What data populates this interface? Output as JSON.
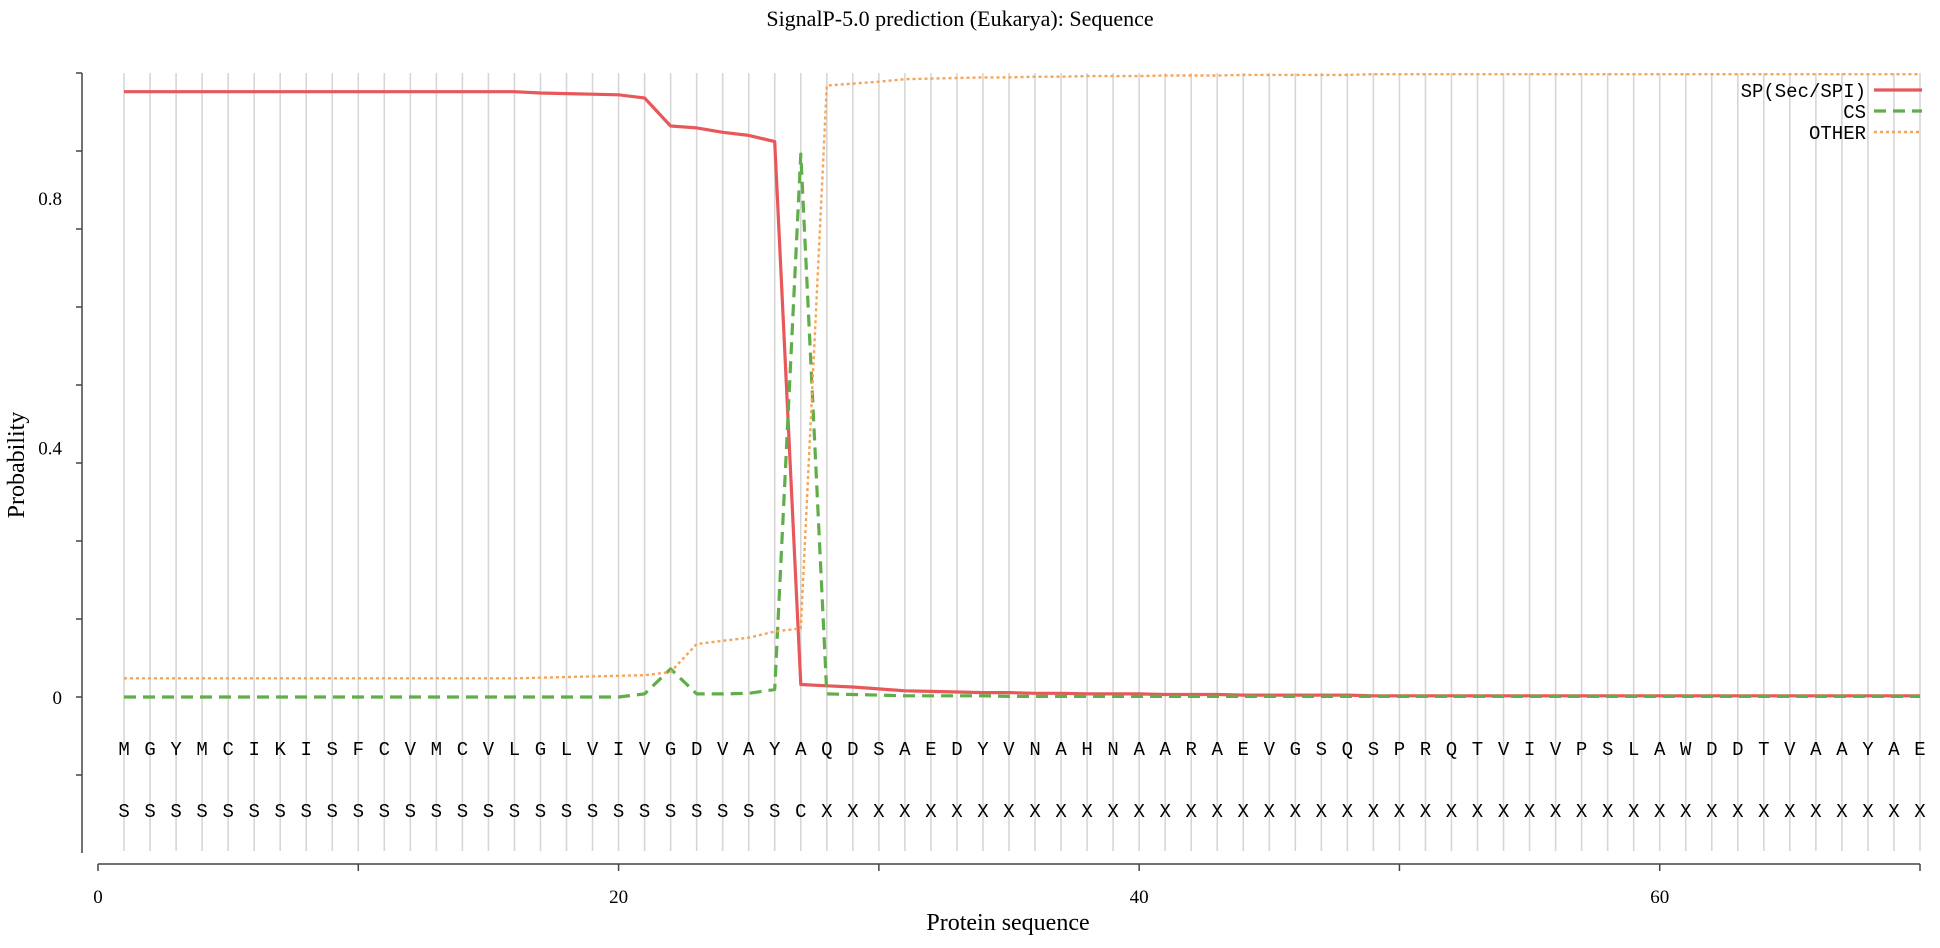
{
  "chart_data": {
    "type": "line",
    "title": "SignalP-5.0 prediction (Eukarya):  Sequence",
    "xlabel": "Protein sequence",
    "ylabel": "Probability",
    "xlim": [
      0,
      70
    ],
    "ylim": [
      -0.25,
      1.0
    ],
    "x_ticks": [
      0,
      20,
      40,
      60
    ],
    "x_tick_labels": [
      "0",
      "20",
      "40",
      "60"
    ],
    "y_ticks": [
      0,
      0.4,
      0.8
    ],
    "y_tick_labels": [
      "0",
      "0.4",
      "0.8"
    ],
    "grid": "vertical lines at each residue",
    "legend_position": "top-right",
    "sequence": [
      "M",
      "G",
      "Y",
      "M",
      "C",
      "I",
      "K",
      "I",
      "S",
      "F",
      "C",
      "V",
      "M",
      "C",
      "V",
      "L",
      "G",
      "L",
      "V",
      "I",
      "V",
      "G",
      "D",
      "V",
      "A",
      "Y",
      "A",
      "Q",
      "D",
      "S",
      "A",
      "E",
      "D",
      "Y",
      "V",
      "N",
      "A",
      "H",
      "N",
      "A",
      "A",
      "R",
      "A",
      "E",
      "V",
      "G",
      "S",
      "Q",
      "S",
      "P",
      "R",
      "Q",
      "T",
      "V",
      "I",
      "V",
      "P",
      "S",
      "L",
      "A",
      "W",
      "D",
      "D",
      "T",
      "V",
      "A",
      "A",
      "Y",
      "A",
      "E"
    ],
    "labels": [
      "S",
      "S",
      "S",
      "S",
      "S",
      "S",
      "S",
      "S",
      "S",
      "S",
      "S",
      "S",
      "S",
      "S",
      "S",
      "S",
      "S",
      "S",
      "S",
      "S",
      "S",
      "S",
      "S",
      "S",
      "S",
      "S",
      "C",
      "X",
      "X",
      "X",
      "X",
      "X",
      "X",
      "X",
      "X",
      "X",
      "X",
      "X",
      "X",
      "X",
      "X",
      "X",
      "X",
      "X",
      "X",
      "X",
      "X",
      "X",
      "X",
      "X",
      "X",
      "X",
      "X",
      "X",
      "X",
      "X",
      "X",
      "X",
      "X",
      "X",
      "X",
      "X",
      "X",
      "X",
      "X",
      "X",
      "X",
      "X",
      "X",
      "X"
    ],
    "x": [
      1,
      2,
      3,
      4,
      5,
      6,
      7,
      8,
      9,
      10,
      11,
      12,
      13,
      14,
      15,
      16,
      17,
      18,
      19,
      20,
      21,
      22,
      23,
      24,
      25,
      26,
      27,
      28,
      29,
      30,
      31,
      32,
      33,
      34,
      35,
      36,
      37,
      38,
      39,
      40,
      41,
      42,
      43,
      44,
      45,
      46,
      47,
      48,
      49,
      50,
      51,
      52,
      53,
      54,
      55,
      56,
      57,
      58,
      59,
      60,
      61,
      62,
      63,
      64,
      65,
      66,
      67,
      68,
      69,
      70
    ],
    "series": [
      {
        "name": "SP(Sec/SPI)",
        "color": "#e8585a",
        "style": "solid",
        "values": [
          0.97,
          0.97,
          0.97,
          0.97,
          0.97,
          0.97,
          0.97,
          0.97,
          0.97,
          0.97,
          0.97,
          0.97,
          0.97,
          0.97,
          0.97,
          0.97,
          0.968,
          0.967,
          0.966,
          0.965,
          0.96,
          0.915,
          0.912,
          0.905,
          0.9,
          0.89,
          0.02,
          0.018,
          0.016,
          0.013,
          0.01,
          0.009,
          0.008,
          0.007,
          0.007,
          0.006,
          0.006,
          0.005,
          0.005,
          0.005,
          0.004,
          0.004,
          0.004,
          0.003,
          0.003,
          0.003,
          0.003,
          0.003,
          0.002,
          0.002,
          0.002,
          0.002,
          0.002,
          0.002,
          0.002,
          0.002,
          0.002,
          0.002,
          0.002,
          0.002,
          0.002,
          0.002,
          0.002,
          0.002,
          0.002,
          0.002,
          0.002,
          0.002,
          0.002,
          0.002
        ]
      },
      {
        "name": "CS",
        "color": "#5fae4a",
        "style": "dashed",
        "values": [
          0.0,
          0.0,
          0.0,
          0.0,
          0.0,
          0.0,
          0.0,
          0.0,
          0.0,
          0.0,
          0.0,
          0.0,
          0.0,
          0.0,
          0.0,
          0.0,
          0.0,
          0.0,
          0.0,
          0.0,
          0.005,
          0.045,
          0.005,
          0.005,
          0.006,
          0.012,
          0.87,
          0.005,
          0.004,
          0.003,
          0.002,
          0.002,
          0.002,
          0.002,
          0.001,
          0.001,
          0.001,
          0.001,
          0.001,
          0.001,
          0.001,
          0.001,
          0.001,
          0.001,
          0.001,
          0.001,
          0.001,
          0.001,
          0.001,
          0.001,
          0.001,
          0.001,
          0.001,
          0.001,
          0.001,
          0.001,
          0.001,
          0.001,
          0.001,
          0.001,
          0.001,
          0.001,
          0.001,
          0.001,
          0.001,
          0.001,
          0.001,
          0.001,
          0.001,
          0.001
        ]
      },
      {
        "name": "OTHER",
        "color": "#f5a55a",
        "style": "dotted",
        "values": [
          0.03,
          0.03,
          0.03,
          0.03,
          0.03,
          0.03,
          0.03,
          0.03,
          0.03,
          0.03,
          0.03,
          0.03,
          0.03,
          0.03,
          0.03,
          0.03,
          0.031,
          0.032,
          0.033,
          0.034,
          0.035,
          0.04,
          0.085,
          0.09,
          0.095,
          0.105,
          0.11,
          0.98,
          0.983,
          0.986,
          0.99,
          0.991,
          0.992,
          0.993,
          0.993,
          0.994,
          0.994,
          0.995,
          0.995,
          0.995,
          0.996,
          0.996,
          0.996,
          0.997,
          0.997,
          0.997,
          0.997,
          0.997,
          0.998,
          0.998,
          0.998,
          0.998,
          0.998,
          0.998,
          0.998,
          0.998,
          0.998,
          0.998,
          0.998,
          0.998,
          0.998,
          0.998,
          0.998,
          0.998,
          0.998,
          0.998,
          0.998,
          0.998,
          0.998,
          0.998
        ]
      }
    ]
  }
}
